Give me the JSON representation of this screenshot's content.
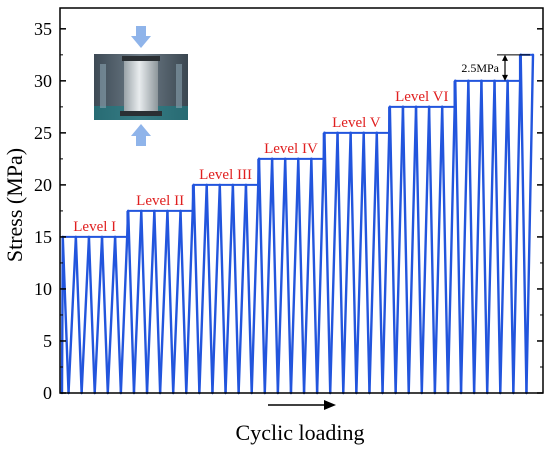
{
  "chart_data": {
    "type": "line",
    "xlabel": "Cyclic loading",
    "ylabel": "Stress (MPa)",
    "ylim": [
      0,
      37
    ],
    "yticks": [
      0,
      5,
      10,
      15,
      20,
      25,
      30,
      35
    ],
    "grid": false,
    "series_color": "#2255dd",
    "label_color": "#e02020",
    "levels": [
      {
        "label": "Level I",
        "stress": 15,
        "cycles": 5
      },
      {
        "label": "Level II",
        "stress": 17.5,
        "cycles": 5
      },
      {
        "label": "Level III",
        "stress": 20,
        "cycles": 5
      },
      {
        "label": "Level IV",
        "stress": 22.5,
        "cycles": 5
      },
      {
        "label": "Level V",
        "stress": 25,
        "cycles": 5
      },
      {
        "label": "Level VI",
        "stress": 27.5,
        "cycles": 5
      },
      {
        "label": "",
        "stress": 30,
        "cycles": 5
      },
      {
        "label": "",
        "stress": 32.5,
        "cycles": 1
      }
    ],
    "annotation": {
      "text": "2.5MPa",
      "from": 30,
      "to": 32.5
    }
  }
}
